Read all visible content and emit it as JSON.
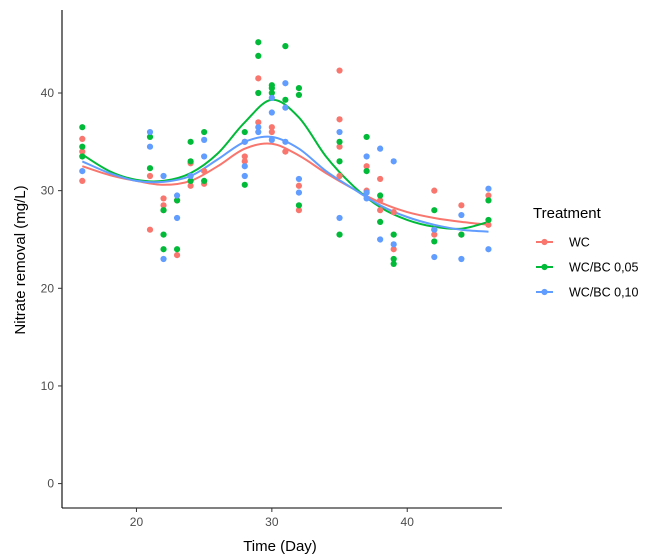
{
  "chart_data": {
    "type": "scatter",
    "xlabel": "Time (Day)",
    "ylabel": "Nitrate removal (mg/L)",
    "xlim": [
      14.5,
      47
    ],
    "ylim": [
      -2.5,
      48.5
    ],
    "x_ticks": [
      20,
      30,
      40
    ],
    "y_ticks": [
      0,
      10,
      20,
      30,
      40
    ],
    "grid": false,
    "legend": {
      "title": "Treatment",
      "placement": "right"
    },
    "series": [
      {
        "name": "WC",
        "color": "#f8766d",
        "points": [
          [
            16,
            35.3
          ],
          [
            16,
            34.0
          ],
          [
            16,
            31.0
          ],
          [
            21,
            26.0
          ],
          [
            21,
            31.5
          ],
          [
            22,
            29.2
          ],
          [
            22,
            28.5
          ],
          [
            22,
            28.0
          ],
          [
            23,
            29.0
          ],
          [
            23,
            23.4
          ],
          [
            24,
            32.8
          ],
          [
            24,
            30.5
          ],
          [
            25,
            32.0
          ],
          [
            25,
            30.7
          ],
          [
            28,
            33.5
          ],
          [
            28,
            33.0
          ],
          [
            28,
            35.0
          ],
          [
            29,
            41.5
          ],
          [
            29,
            37.0
          ],
          [
            30,
            36.0
          ],
          [
            30,
            36.5
          ],
          [
            31,
            34.0
          ],
          [
            32,
            30.5
          ],
          [
            32,
            28.0
          ],
          [
            35,
            42.3
          ],
          [
            35,
            37.3
          ],
          [
            35,
            34.5
          ],
          [
            35,
            31.5
          ],
          [
            37,
            32.5
          ],
          [
            37,
            30.0
          ],
          [
            38,
            31.2
          ],
          [
            38,
            29.0
          ],
          [
            38,
            28.0
          ],
          [
            39,
            27.8
          ],
          [
            39,
            24.0
          ],
          [
            42,
            30.0
          ],
          [
            42,
            26.0
          ],
          [
            42,
            25.5
          ],
          [
            44,
            28.5
          ],
          [
            44,
            25.5
          ],
          [
            46,
            29.5
          ],
          [
            46,
            26.5
          ]
        ],
        "trend": [
          [
            16,
            32.5
          ],
          [
            18,
            31.6
          ],
          [
            20,
            31.0
          ],
          [
            22,
            30.6
          ],
          [
            24,
            31.0
          ],
          [
            26,
            32.5
          ],
          [
            28,
            34.3
          ],
          [
            30,
            34.8
          ],
          [
            32,
            33.6
          ],
          [
            34,
            31.8
          ],
          [
            36,
            30.2
          ],
          [
            38,
            28.8
          ],
          [
            40,
            27.8
          ],
          [
            42,
            27.2
          ],
          [
            44,
            26.8
          ],
          [
            46,
            26.5
          ]
        ]
      },
      {
        "name": "WC/BC 0,05",
        "color": "#00ba38",
        "points": [
          [
            16,
            36.5
          ],
          [
            16,
            34.5
          ],
          [
            16,
            33.5
          ],
          [
            21,
            32.3
          ],
          [
            21,
            35.5
          ],
          [
            22,
            28.0
          ],
          [
            22,
            25.5
          ],
          [
            22,
            24.0
          ],
          [
            23,
            24.0
          ],
          [
            23,
            29.0
          ],
          [
            24,
            35.0
          ],
          [
            24,
            33.0
          ],
          [
            24,
            31.0
          ],
          [
            25,
            36.0
          ],
          [
            25,
            31.0
          ],
          [
            28,
            36.0
          ],
          [
            28,
            30.6
          ],
          [
            29,
            45.2
          ],
          [
            29,
            43.8
          ],
          [
            29,
            40.0
          ],
          [
            30,
            40.8
          ],
          [
            30,
            40.5
          ],
          [
            30,
            40.0
          ],
          [
            31,
            44.8
          ],
          [
            31,
            39.3
          ],
          [
            32,
            40.5
          ],
          [
            32,
            39.8
          ],
          [
            32,
            28.5
          ],
          [
            35,
            35.0
          ],
          [
            35,
            33.0
          ],
          [
            35,
            25.5
          ],
          [
            37,
            35.5
          ],
          [
            37,
            32.0
          ],
          [
            38,
            29.5
          ],
          [
            38,
            26.8
          ],
          [
            39,
            25.5
          ],
          [
            39,
            23.0
          ],
          [
            39,
            22.5
          ],
          [
            42,
            28.0
          ],
          [
            42,
            24.8
          ],
          [
            44,
            25.5
          ],
          [
            46,
            29.0
          ],
          [
            46,
            27.0
          ]
        ],
        "trend": [
          [
            16,
            33.7
          ],
          [
            18,
            32.0
          ],
          [
            20,
            31.1
          ],
          [
            22,
            31.0
          ],
          [
            24,
            31.8
          ],
          [
            26,
            33.8
          ],
          [
            28,
            37.0
          ],
          [
            30,
            39.3
          ],
          [
            32,
            37.5
          ],
          [
            34,
            33.5
          ],
          [
            36,
            30.5
          ],
          [
            38,
            28.3
          ],
          [
            40,
            27.0
          ],
          [
            42,
            26.3
          ],
          [
            44,
            26.1
          ],
          [
            46,
            26.8
          ]
        ]
      },
      {
        "name": "WC/BC 0,10",
        "color": "#619cff",
        "points": [
          [
            16,
            32.0
          ],
          [
            21,
            36.0
          ],
          [
            21,
            34.5
          ],
          [
            22,
            23.0
          ],
          [
            22,
            31.5
          ],
          [
            23,
            29.5
          ],
          [
            23,
            27.2
          ],
          [
            24,
            31.5
          ],
          [
            25,
            35.2
          ],
          [
            25,
            33.5
          ],
          [
            28,
            35.0
          ],
          [
            28,
            32.5
          ],
          [
            28,
            31.5
          ],
          [
            29,
            36.5
          ],
          [
            29,
            36.0
          ],
          [
            30,
            39.5
          ],
          [
            30,
            38.0
          ],
          [
            30,
            35.2
          ],
          [
            31,
            41.0
          ],
          [
            31,
            38.5
          ],
          [
            31,
            35.0
          ],
          [
            32,
            31.2
          ],
          [
            32,
            29.8
          ],
          [
            35,
            36.0
          ],
          [
            35,
            27.2
          ],
          [
            37,
            33.5
          ],
          [
            37,
            29.8
          ],
          [
            37,
            29.2
          ],
          [
            38,
            34.3
          ],
          [
            38,
            25.0
          ],
          [
            39,
            33.0
          ],
          [
            39,
            24.5
          ],
          [
            42,
            23.2
          ],
          [
            42,
            26.0
          ],
          [
            44,
            27.5
          ],
          [
            44,
            23.0
          ],
          [
            46,
            30.2
          ],
          [
            46,
            24.0
          ]
        ],
        "trend": [
          [
            16,
            33.0
          ],
          [
            18,
            31.8
          ],
          [
            20,
            31.0
          ],
          [
            22,
            30.9
          ],
          [
            24,
            31.5
          ],
          [
            26,
            33.2
          ],
          [
            28,
            35.0
          ],
          [
            30,
            35.5
          ],
          [
            32,
            34.3
          ],
          [
            34,
            32.0
          ],
          [
            36,
            30.2
          ],
          [
            38,
            28.5
          ],
          [
            40,
            27.3
          ],
          [
            42,
            26.5
          ],
          [
            44,
            26.0
          ],
          [
            46,
            25.8
          ]
        ]
      }
    ]
  }
}
